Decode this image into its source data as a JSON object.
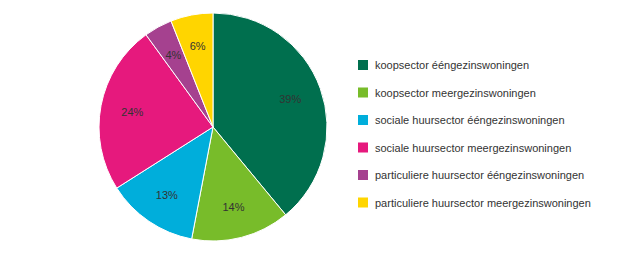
{
  "chart_data": {
    "type": "pie",
    "categories": [
      "koopsector ééngezinswoningen",
      "koopsector meergezinswoningen",
      "sociale huursector ééngezinswoningen",
      "sociale huursector meergezinswoningen",
      "particuliere huursector ééngezinswoningen",
      "particuliere huursector meergezinswoningen"
    ],
    "values": [
      39,
      14,
      13,
      24,
      4,
      6
    ],
    "value_labels": [
      "39%",
      "14%",
      "13%",
      "24%",
      "4%",
      "6%"
    ],
    "colors": [
      "#006f4e",
      "#78bc2a",
      "#00aedb",
      "#e6197d",
      "#a5418f",
      "#ffd500"
    ],
    "data_labels": true,
    "legend": "right"
  }
}
